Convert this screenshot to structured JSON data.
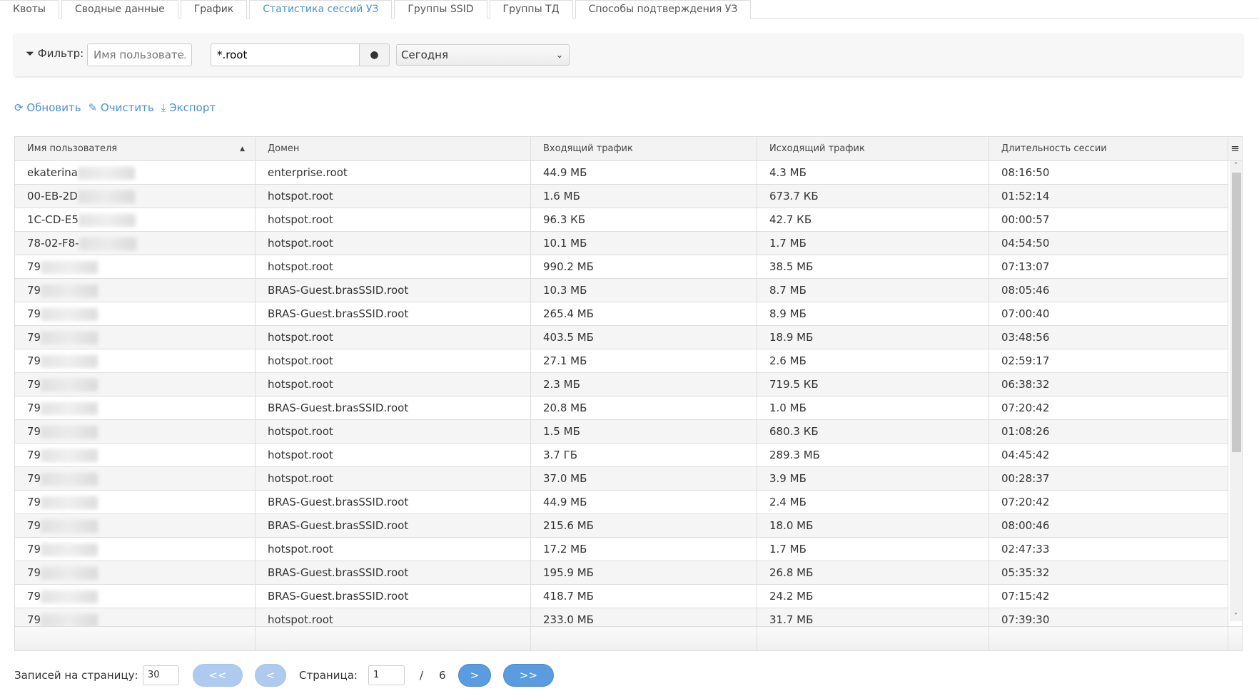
{
  "tabs": [
    "Квоты",
    "Сводные данные",
    "График",
    "Статистика сессий УЗ",
    "Группы SSID",
    "Группы ТД",
    "Способы подтверждения УЗ"
  ],
  "active_tab": 3,
  "filter": {
    "label": "Фильтр:",
    "username_placeholder": "Имя пользователя",
    "domain_value": "*.root",
    "period": "Сегодня"
  },
  "actions": {
    "refresh": "Обновить",
    "clear": "Очистить",
    "export": "Экспорт"
  },
  "table": {
    "columns": [
      "Имя пользователя",
      "Домен",
      "Входящий трафик",
      "Исходящий трафик",
      "Длительность сессии"
    ],
    "sort": {
      "column": 0,
      "direction": "asc"
    },
    "rows": [
      [
        "ekaterina",
        "enterprise.root",
        "44.9 МБ",
        "4.3 МБ",
        "08:16:50"
      ],
      [
        "00-EB-2D",
        "hotspot.root",
        "1.6 МБ",
        "673.7 КБ",
        "01:52:14"
      ],
      [
        "1C-CD-E5",
        "hotspot.root",
        "96.3 КБ",
        "42.7 КБ",
        "00:00:57"
      ],
      [
        "78-02-F8-",
        "hotspot.root",
        "10.1 МБ",
        "1.7 МБ",
        "04:54:50"
      ],
      [
        "79",
        "hotspot.root",
        "990.2 МБ",
        "38.5 МБ",
        "07:13:07"
      ],
      [
        "79",
        "BRAS-Guest.brasSSID.root",
        "10.3 МБ",
        "8.7 МБ",
        "08:05:46"
      ],
      [
        "79",
        "BRAS-Guest.brasSSID.root",
        "265.4 МБ",
        "8.9 МБ",
        "07:00:40"
      ],
      [
        "79",
        "hotspot.root",
        "403.5 МБ",
        "18.9 МБ",
        "03:48:56"
      ],
      [
        "79",
        "hotspot.root",
        "27.1 МБ",
        "2.6 МБ",
        "02:59:17"
      ],
      [
        "79",
        "hotspot.root",
        "2.3 МБ",
        "719.5 КБ",
        "06:38:32"
      ],
      [
        "79",
        "BRAS-Guest.brasSSID.root",
        "20.8 МБ",
        "1.0 МБ",
        "07:20:42"
      ],
      [
        "79",
        "hotspot.root",
        "1.5 МБ",
        "680.3 КБ",
        "01:08:26"
      ],
      [
        "79",
        "hotspot.root",
        "3.7 ГБ",
        "289.3 МБ",
        "04:45:42"
      ],
      [
        "79",
        "hotspot.root",
        "37.0 МБ",
        "3.9 МБ",
        "00:28:37"
      ],
      [
        "79",
        "BRAS-Guest.brasSSID.root",
        "44.9 МБ",
        "2.4 МБ",
        "07:20:42"
      ],
      [
        "79",
        "BRAS-Guest.brasSSID.root",
        "215.6 МБ",
        "18.0 МБ",
        "08:00:46"
      ],
      [
        "79",
        "hotspot.root",
        "17.2 МБ",
        "1.7 МБ",
        "02:47:33"
      ],
      [
        "79",
        "BRAS-Guest.brasSSID.root",
        "195.9 МБ",
        "26.8 МБ",
        "05:35:32"
      ],
      [
        "79",
        "BRAS-Guest.brasSSID.root",
        "418.7 МБ",
        "24.2 МБ",
        "07:15:42"
      ],
      [
        "79",
        "hotspot.root",
        "233.0 МБ",
        "31.7 МБ",
        "07:39:30"
      ]
    ]
  },
  "pagination": {
    "per_page_label": "Записей на страницу:",
    "per_page": "30",
    "first": "<<",
    "prev": "<",
    "page_label": "Страница:",
    "page": "1",
    "sep": "/",
    "total_pages": "6",
    "next": ">",
    "last": ">>"
  },
  "colors": {
    "accent": "#4a90d9",
    "button": "#5b9be0",
    "button_disabled": "#aecbef"
  }
}
